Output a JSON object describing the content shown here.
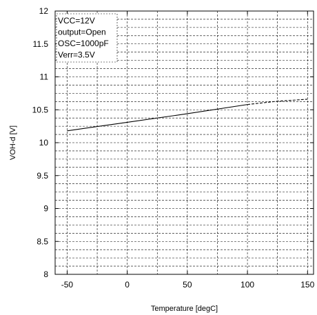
{
  "chart_data": {
    "type": "line",
    "xlabel": "Temperature [degC]",
    "ylabel": "VOH-d [V]",
    "xlim": [
      -60,
      155
    ],
    "ylim": [
      8,
      12
    ],
    "x_ticks": [
      -50,
      0,
      50,
      100,
      150
    ],
    "y_ticks": [
      8,
      8.5,
      9,
      9.5,
      10,
      10.5,
      11,
      11.5,
      12
    ],
    "x_tick_labels": [
      "-50",
      "0",
      "50",
      "100",
      "150"
    ],
    "y_tick_labels": [
      "8",
      "8.5",
      "9",
      "9.5",
      "10",
      "10.5",
      "11",
      "11.5",
      "12"
    ],
    "grid": true,
    "annotations": [
      "VCC=12V",
      "output=Open",
      "OSC=1000pF",
      "Verr=3.5V"
    ],
    "series": [
      {
        "style": "solid",
        "color": "#000000",
        "x": [
          -50,
          0,
          50,
          100
        ],
        "y": [
          10.18,
          10.31,
          10.44,
          10.58
        ]
      },
      {
        "style": "dashed",
        "color": "#000000",
        "x": [
          100,
          125,
          150
        ],
        "y": [
          10.58,
          10.63,
          10.66
        ]
      }
    ]
  }
}
